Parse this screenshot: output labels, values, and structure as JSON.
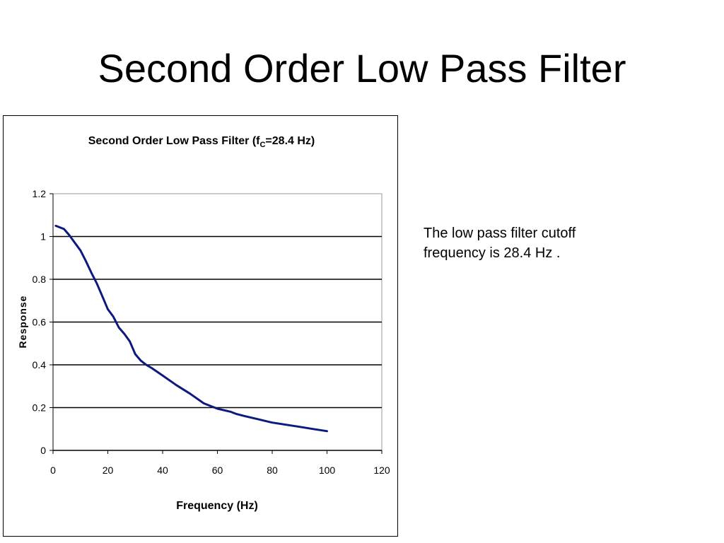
{
  "slide": {
    "title": "Second Order Low Pass Filter",
    "note": "The low pass filter cutoff frequency is 28.4 Hz ."
  },
  "chart_data": {
    "type": "line",
    "title_main": "Second Order Low Pass Filter (f",
    "title_sub": "C",
    "title_end": "=28.4 Hz)",
    "xlabel": "Frequency (Hz)",
    "ylabel": "Response",
    "xlim": [
      0,
      120
    ],
    "ylim": [
      0,
      1.2
    ],
    "xticks": [
      0,
      20,
      40,
      60,
      80,
      100,
      120
    ],
    "yticks": [
      0,
      0.2,
      0.4,
      0.6,
      0.8,
      1,
      1.2
    ],
    "ytick_labels": [
      "0",
      "0.2",
      "0.4",
      "0.6",
      "0.8",
      "1",
      "1.2"
    ],
    "grid": "horizontal",
    "legend": "none",
    "series": [
      {
        "color": "#0a1a7e",
        "x": [
          1,
          4,
          6,
          8,
          10,
          12,
          14,
          16,
          18,
          20,
          22,
          24,
          26,
          28,
          30,
          32,
          34,
          36,
          40,
          45,
          50,
          55,
          58,
          60,
          65,
          67,
          70,
          75,
          80,
          85,
          90,
          95,
          100
        ],
        "y": [
          1.05,
          1.035,
          1.005,
          0.97,
          0.935,
          0.885,
          0.83,
          0.78,
          0.72,
          0.66,
          0.625,
          0.575,
          0.545,
          0.51,
          0.45,
          0.42,
          0.4,
          0.385,
          0.35,
          0.305,
          0.265,
          0.22,
          0.205,
          0.195,
          0.18,
          0.17,
          0.16,
          0.145,
          0.13,
          0.12,
          0.11,
          0.1,
          0.09
        ]
      }
    ]
  }
}
